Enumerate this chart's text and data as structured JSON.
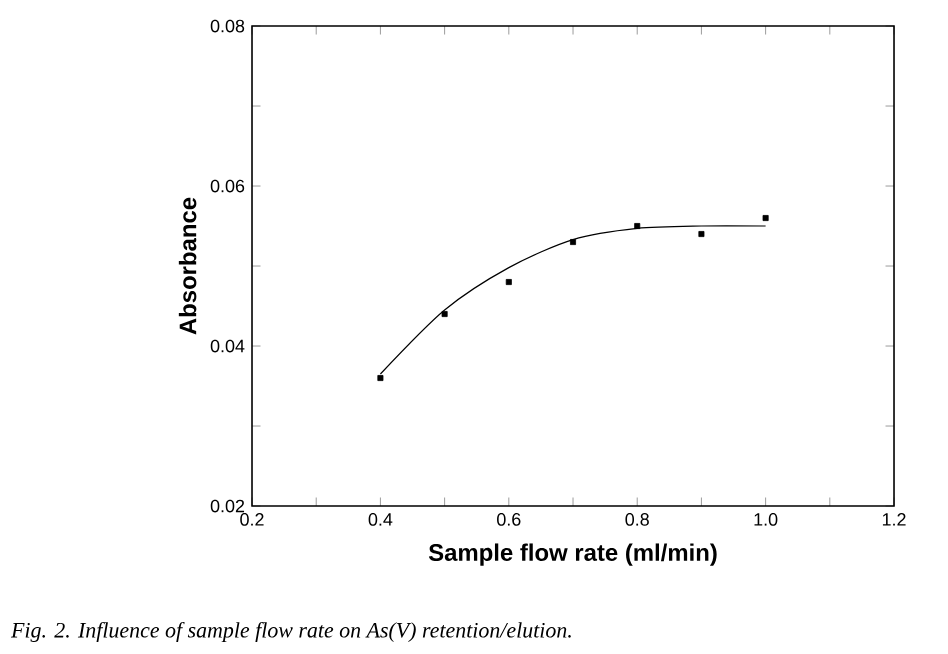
{
  "chart_data": {
    "type": "scatter",
    "xlabel": "Sample flow rate (ml/min)",
    "ylabel": "Absorbance",
    "annotations": [
      "*Fig. 2. Influence of sample flow rate on As(V) retention/elution.*"
    ],
    "xlim": [
      0.2,
      1.2
    ],
    "ylim": [
      0.02,
      0.08
    ],
    "xticks": [
      0.2,
      {
        "value": 0.3,
        "label": null
      },
      0.4,
      {
        "value": 0.5,
        "label": null
      },
      0.6,
      {
        "value": 0.7,
        "label": null
      },
      0.8,
      {
        "value": 0.9,
        "label": null
      },
      {
        "value": 1.0,
        "label": "1.0"
      },
      {
        "value": 1.1,
        "label": null
      },
      1.2
    ],
    "yticks": [
      0.02,
      {
        "value": 0.03,
        "label": null
      },
      0.04,
      {
        "value": 0.05,
        "label": null
      },
      0.06,
      {
        "value": 0.07,
        "label": null
      },
      0.08
    ],
    "marker": "square",
    "series": [
      {
        "color": "#000000",
        "x": [
          0.4,
          0.5,
          0.6,
          0.7,
          0.8,
          0.9,
          1.0
        ],
        "values": [
          0.036,
          0.044,
          0.048,
          0.053,
          0.055,
          0.054,
          0.056
        ]
      },
      {
        "type": "line",
        "color": "#000000",
        "marker": "none",
        "x": [
          0.4,
          0.5,
          0.6,
          0.7,
          0.8,
          0.9,
          1.0
        ],
        "values": [
          0.0365,
          0.0445,
          0.0498,
          0.0533,
          0.0547,
          0.055,
          0.055
        ]
      }
    ]
  }
}
